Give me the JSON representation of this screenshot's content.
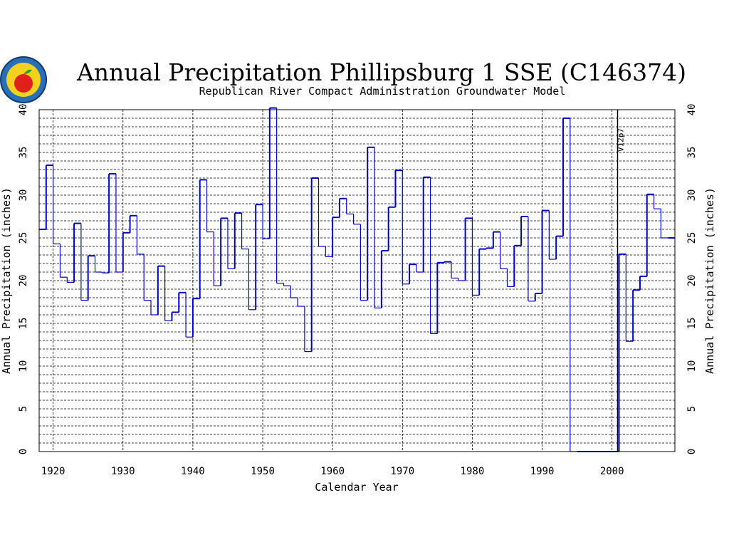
{
  "chart_data": {
    "type": "line",
    "title": "Annual Precipitation Phillipsburg 1 SSE (C146374)",
    "subtitle": "Republican River Compact Administration Groundwater Model",
    "xlabel": "Calendar Year",
    "ylabel": "Annual Precipitation (inches)",
    "ylabel_right": "Annual Precipitation (inches)",
    "xlim": [
      1918,
      2009
    ],
    "ylim": [
      0,
      40
    ],
    "x_ticks": [
      "1920",
      "1930",
      "1940",
      "1950",
      "1960",
      "1970",
      "1980",
      "1990",
      "2000"
    ],
    "y_ticks": [
      "0",
      "5",
      "10",
      "15",
      "20",
      "25",
      "30",
      "35",
      "40"
    ],
    "grid": true,
    "step": true,
    "annotation": {
      "label": "V12p7",
      "x": 2001
    },
    "colors": {
      "line": "#0000cc",
      "grid": "#000000",
      "annotation": "#000000"
    },
    "series": [
      {
        "x": [
          1918,
          1919,
          1920,
          1921,
          1922,
          1923,
          1924,
          1925,
          1926,
          1927,
          1928,
          1929,
          1930,
          1931,
          1932,
          1933,
          1934,
          1935,
          1936,
          1937,
          1938,
          1939,
          1940,
          1941,
          1942,
          1943,
          1944,
          1945,
          1946,
          1947,
          1948,
          1949,
          1950,
          1951,
          1952,
          1953,
          1954,
          1955,
          1956,
          1957,
          1958,
          1959,
          1960,
          1961,
          1962,
          1963,
          1964,
          1965,
          1966,
          1967,
          1968,
          1969,
          1970,
          1971,
          1972,
          1973,
          1974,
          1975,
          1976,
          1977,
          1978,
          1979,
          1980,
          1981,
          1982,
          1983,
          1984,
          1985,
          1986,
          1987,
          1988,
          1989,
          1990,
          1991,
          1992,
          1993,
          1994,
          1995,
          1996,
          1997,
          1998,
          1999,
          2000,
          2001,
          2002,
          2003,
          2004,
          2005,
          2006,
          2007,
          2008
        ],
        "values": [
          26.0,
          33.5,
          24.3,
          20.4,
          19.8,
          26.7,
          17.7,
          22.9,
          21.0,
          20.9,
          32.5,
          21.0,
          25.6,
          27.6,
          23.1,
          17.7,
          16.0,
          21.7,
          15.3,
          16.3,
          18.6,
          13.4,
          17.9,
          31.8,
          25.7,
          19.4,
          27.3,
          21.4,
          27.9,
          23.7,
          16.6,
          28.9,
          24.9,
          40.2,
          19.7,
          19.4,
          18.0,
          17.0,
          11.7,
          32.0,
          24.0,
          22.8,
          27.4,
          29.6,
          27.8,
          26.6,
          17.7,
          35.6,
          16.8,
          23.5,
          28.6,
          32.9,
          19.6,
          21.9,
          21.0,
          32.1,
          13.8,
          22.1,
          22.2,
          20.3,
          20.0,
          27.3,
          18.3,
          23.7,
          23.8,
          25.7,
          21.4,
          19.3,
          24.1,
          27.5,
          17.6,
          18.5,
          28.2,
          22.5,
          25.2,
          39.0,
          0,
          0,
          0,
          0,
          0,
          0,
          0,
          23.1,
          12.9,
          18.9,
          20.5,
          30.1,
          28.4,
          25.0,
          25.0
        ]
      }
    ]
  }
}
